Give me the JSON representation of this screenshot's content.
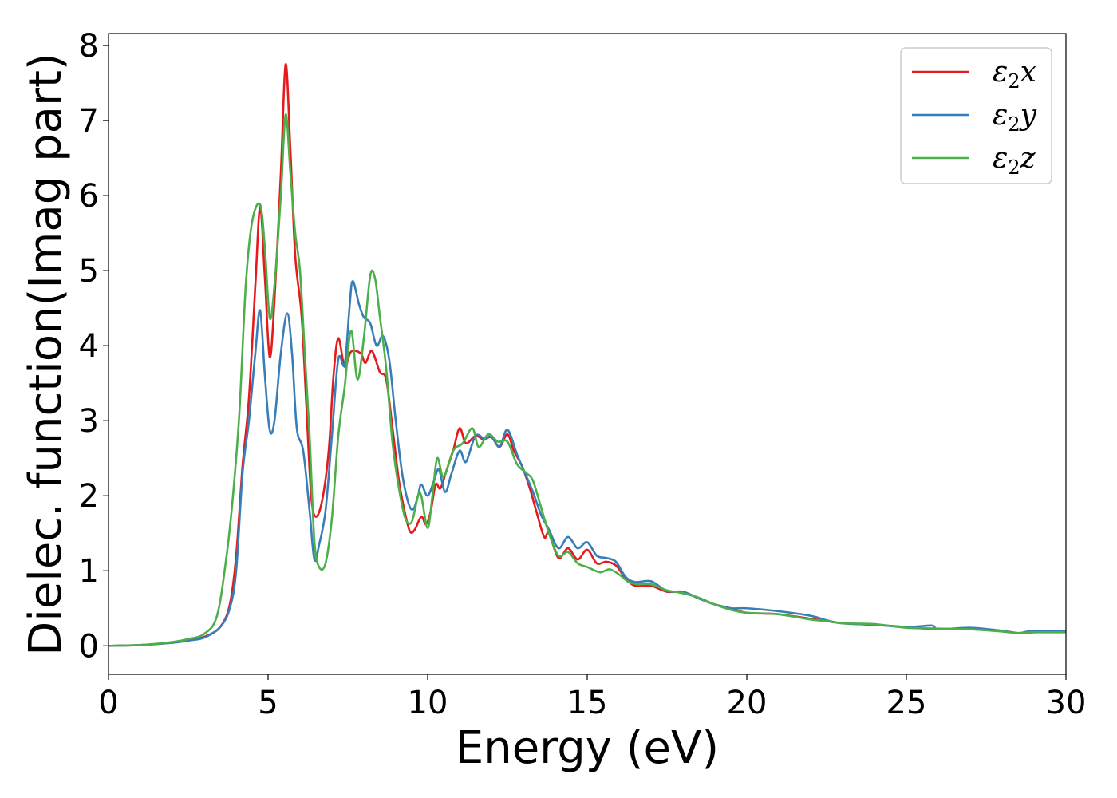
{
  "chart_data": {
    "type": "line",
    "title": "",
    "xlabel": "Energy (eV)",
    "ylabel": "Dielec. function(Imag part)",
    "xlim": [
      0,
      30
    ],
    "ylim": [
      -0.38,
      8.16
    ],
    "xticks": [
      0,
      5,
      10,
      15,
      20,
      25,
      30
    ],
    "yticks": [
      0,
      1,
      2,
      3,
      4,
      5,
      6,
      7,
      8
    ],
    "grid": false,
    "legend_position": "top-right",
    "series": [
      {
        "name": "ε2x",
        "legend_symbol": "ε",
        "legend_sub": "2",
        "legend_var": "x",
        "color": "#e41a1c",
        "points": [
          [
            0,
            0
          ],
          [
            1,
            0.01
          ],
          [
            2,
            0.04
          ],
          [
            2.5,
            0.07
          ],
          [
            3,
            0.12
          ],
          [
            3.5,
            0.25
          ],
          [
            3.8,
            0.55
          ],
          [
            4.0,
            1.2
          ],
          [
            4.2,
            2.4
          ],
          [
            4.4,
            3.3
          ],
          [
            4.6,
            4.8
          ],
          [
            4.75,
            5.85
          ],
          [
            4.9,
            4.9
          ],
          [
            5.05,
            3.85
          ],
          [
            5.2,
            4.6
          ],
          [
            5.4,
            6.3
          ],
          [
            5.55,
            7.75
          ],
          [
            5.7,
            6.6
          ],
          [
            5.85,
            5.2
          ],
          [
            6.05,
            4.4
          ],
          [
            6.2,
            3.2
          ],
          [
            6.35,
            2.0
          ],
          [
            6.5,
            1.72
          ],
          [
            6.7,
            1.95
          ],
          [
            6.9,
            2.6
          ],
          [
            7.05,
            3.6
          ],
          [
            7.2,
            4.1
          ],
          [
            7.4,
            3.72
          ],
          [
            7.6,
            3.92
          ],
          [
            7.9,
            3.9
          ],
          [
            8.05,
            3.77
          ],
          [
            8.25,
            3.93
          ],
          [
            8.5,
            3.65
          ],
          [
            8.7,
            3.55
          ],
          [
            8.9,
            2.9
          ],
          [
            9.1,
            2.2
          ],
          [
            9.3,
            1.75
          ],
          [
            9.45,
            1.52
          ],
          [
            9.6,
            1.55
          ],
          [
            9.8,
            1.72
          ],
          [
            9.95,
            1.62
          ],
          [
            10.1,
            1.8
          ],
          [
            10.25,
            2.15
          ],
          [
            10.4,
            2.1
          ],
          [
            10.6,
            2.35
          ],
          [
            10.8,
            2.6
          ],
          [
            11.0,
            2.9
          ],
          [
            11.2,
            2.7
          ],
          [
            11.5,
            2.8
          ],
          [
            11.75,
            2.75
          ],
          [
            12.0,
            2.78
          ],
          [
            12.25,
            2.65
          ],
          [
            12.5,
            2.82
          ],
          [
            12.7,
            2.6
          ],
          [
            12.95,
            2.4
          ],
          [
            13.2,
            2.1
          ],
          [
            13.4,
            1.8
          ],
          [
            13.65,
            1.45
          ],
          [
            13.8,
            1.5
          ],
          [
            14.1,
            1.17
          ],
          [
            14.4,
            1.3
          ],
          [
            14.7,
            1.15
          ],
          [
            15.0,
            1.28
          ],
          [
            15.3,
            1.1
          ],
          [
            15.6,
            1.12
          ],
          [
            15.9,
            1.07
          ],
          [
            16.2,
            0.9
          ],
          [
            16.5,
            0.8
          ],
          [
            17,
            0.8
          ],
          [
            17.5,
            0.72
          ],
          [
            18,
            0.72
          ],
          [
            18.5,
            0.63
          ],
          [
            19,
            0.55
          ],
          [
            19.5,
            0.5
          ],
          [
            20,
            0.44
          ],
          [
            21,
            0.42
          ],
          [
            22,
            0.36
          ],
          [
            22.5,
            0.33
          ],
          [
            23,
            0.3
          ],
          [
            24,
            0.28
          ],
          [
            25,
            0.25
          ],
          [
            26,
            0.22
          ],
          [
            27,
            0.22
          ],
          [
            28,
            0.2
          ],
          [
            28.5,
            0.17
          ],
          [
            29,
            0.18
          ],
          [
            30,
            0.19
          ]
        ]
      },
      {
        "name": "ε2y",
        "legend_symbol": "ε",
        "legend_sub": "2",
        "legend_var": "y",
        "color": "#377eb8",
        "points": [
          [
            0,
            0
          ],
          [
            1,
            0.01
          ],
          [
            2,
            0.04
          ],
          [
            2.5,
            0.07
          ],
          [
            3,
            0.11
          ],
          [
            3.5,
            0.25
          ],
          [
            3.8,
            0.5
          ],
          [
            4.0,
            1.0
          ],
          [
            4.2,
            2.3
          ],
          [
            4.4,
            3.0
          ],
          [
            4.6,
            3.9
          ],
          [
            4.75,
            4.47
          ],
          [
            4.9,
            3.6
          ],
          [
            5.05,
            2.88
          ],
          [
            5.2,
            3.0
          ],
          [
            5.4,
            3.9
          ],
          [
            5.6,
            4.43
          ],
          [
            5.75,
            3.9
          ],
          [
            5.9,
            2.9
          ],
          [
            6.1,
            2.6
          ],
          [
            6.3,
            1.8
          ],
          [
            6.45,
            1.15
          ],
          [
            6.6,
            1.35
          ],
          [
            6.8,
            1.8
          ],
          [
            7.0,
            2.8
          ],
          [
            7.2,
            3.82
          ],
          [
            7.4,
            3.75
          ],
          [
            7.55,
            4.5
          ],
          [
            7.65,
            4.86
          ],
          [
            7.85,
            4.55
          ],
          [
            8.0,
            4.38
          ],
          [
            8.2,
            4.3
          ],
          [
            8.4,
            4.0
          ],
          [
            8.6,
            4.13
          ],
          [
            8.8,
            3.8
          ],
          [
            9.0,
            3.0
          ],
          [
            9.2,
            2.3
          ],
          [
            9.4,
            1.9
          ],
          [
            9.55,
            1.82
          ],
          [
            9.7,
            2.0
          ],
          [
            9.8,
            2.15
          ],
          [
            10.0,
            2.0
          ],
          [
            10.2,
            2.2
          ],
          [
            10.35,
            2.35
          ],
          [
            10.55,
            2.05
          ],
          [
            10.75,
            2.3
          ],
          [
            11.0,
            2.6
          ],
          [
            11.2,
            2.45
          ],
          [
            11.5,
            2.8
          ],
          [
            11.8,
            2.75
          ],
          [
            12.0,
            2.8
          ],
          [
            12.25,
            2.65
          ],
          [
            12.5,
            2.88
          ],
          [
            12.8,
            2.55
          ],
          [
            13.0,
            2.35
          ],
          [
            13.3,
            2.05
          ],
          [
            13.55,
            1.75
          ],
          [
            13.8,
            1.55
          ],
          [
            14.1,
            1.3
          ],
          [
            14.4,
            1.45
          ],
          [
            14.7,
            1.3
          ],
          [
            15.0,
            1.38
          ],
          [
            15.3,
            1.2
          ],
          [
            15.6,
            1.17
          ],
          [
            15.9,
            1.12
          ],
          [
            16.2,
            0.92
          ],
          [
            16.5,
            0.85
          ],
          [
            17,
            0.86
          ],
          [
            17.5,
            0.73
          ],
          [
            18,
            0.72
          ],
          [
            18.5,
            0.63
          ],
          [
            19,
            0.55
          ],
          [
            19.5,
            0.5
          ],
          [
            20,
            0.5
          ],
          [
            21,
            0.46
          ],
          [
            22,
            0.4
          ],
          [
            22.5,
            0.34
          ],
          [
            23,
            0.3
          ],
          [
            24,
            0.28
          ],
          [
            25,
            0.25
          ],
          [
            25.8,
            0.27
          ],
          [
            26,
            0.22
          ],
          [
            27,
            0.24
          ],
          [
            28,
            0.2
          ],
          [
            28.5,
            0.17
          ],
          [
            29,
            0.2
          ],
          [
            30,
            0.19
          ]
        ]
      },
      {
        "name": "ε2z",
        "legend_symbol": "ε",
        "legend_sub": "2",
        "legend_var": "z",
        "color": "#4daf4a",
        "points": [
          [
            0,
            0
          ],
          [
            1,
            0.01
          ],
          [
            2,
            0.05
          ],
          [
            2.5,
            0.09
          ],
          [
            3,
            0.16
          ],
          [
            3.4,
            0.4
          ],
          [
            3.7,
            1.2
          ],
          [
            3.9,
            2.0
          ],
          [
            4.1,
            3.1
          ],
          [
            4.3,
            4.8
          ],
          [
            4.5,
            5.65
          ],
          [
            4.75,
            5.88
          ],
          [
            4.9,
            5.3
          ],
          [
            5.05,
            4.37
          ],
          [
            5.2,
            4.8
          ],
          [
            5.4,
            6.0
          ],
          [
            5.55,
            7.08
          ],
          [
            5.7,
            6.3
          ],
          [
            5.85,
            5.5
          ],
          [
            6.0,
            5.0
          ],
          [
            6.15,
            3.9
          ],
          [
            6.3,
            2.8
          ],
          [
            6.45,
            1.4
          ],
          [
            6.6,
            1.05
          ],
          [
            6.8,
            1.1
          ],
          [
            7.0,
            1.7
          ],
          [
            7.2,
            2.8
          ],
          [
            7.4,
            3.45
          ],
          [
            7.6,
            4.2
          ],
          [
            7.8,
            3.55
          ],
          [
            8.0,
            4.1
          ],
          [
            8.2,
            4.93
          ],
          [
            8.35,
            4.9
          ],
          [
            8.5,
            4.4
          ],
          [
            8.7,
            3.7
          ],
          [
            8.9,
            2.7
          ],
          [
            9.1,
            2.1
          ],
          [
            9.3,
            1.7
          ],
          [
            9.5,
            1.65
          ],
          [
            9.7,
            2.0
          ],
          [
            9.8,
            2.0
          ],
          [
            10.0,
            1.57
          ],
          [
            10.15,
            2.0
          ],
          [
            10.3,
            2.5
          ],
          [
            10.5,
            2.25
          ],
          [
            10.8,
            2.6
          ],
          [
            11.1,
            2.7
          ],
          [
            11.4,
            2.9
          ],
          [
            11.6,
            2.65
          ],
          [
            11.9,
            2.82
          ],
          [
            12.2,
            2.72
          ],
          [
            12.5,
            2.72
          ],
          [
            12.8,
            2.42
          ],
          [
            13.1,
            2.3
          ],
          [
            13.3,
            2.2
          ],
          [
            13.55,
            1.85
          ],
          [
            13.8,
            1.5
          ],
          [
            14.1,
            1.2
          ],
          [
            14.4,
            1.25
          ],
          [
            14.7,
            1.1
          ],
          [
            15.0,
            1.05
          ],
          [
            15.4,
            0.98
          ],
          [
            15.7,
            1.02
          ],
          [
            16.0,
            0.95
          ],
          [
            16.3,
            0.85
          ],
          [
            16.6,
            0.82
          ],
          [
            17,
            0.82
          ],
          [
            17.5,
            0.74
          ],
          [
            18,
            0.7
          ],
          [
            18.5,
            0.64
          ],
          [
            19,
            0.55
          ],
          [
            19.5,
            0.48
          ],
          [
            20,
            0.44
          ],
          [
            21,
            0.42
          ],
          [
            22,
            0.35
          ],
          [
            22.5,
            0.33
          ],
          [
            23,
            0.3
          ],
          [
            24,
            0.29
          ],
          [
            25,
            0.24
          ],
          [
            26,
            0.23
          ],
          [
            27,
            0.22
          ],
          [
            28,
            0.19
          ],
          [
            28.5,
            0.17
          ],
          [
            29,
            0.18
          ],
          [
            30,
            0.18
          ]
        ]
      }
    ]
  }
}
